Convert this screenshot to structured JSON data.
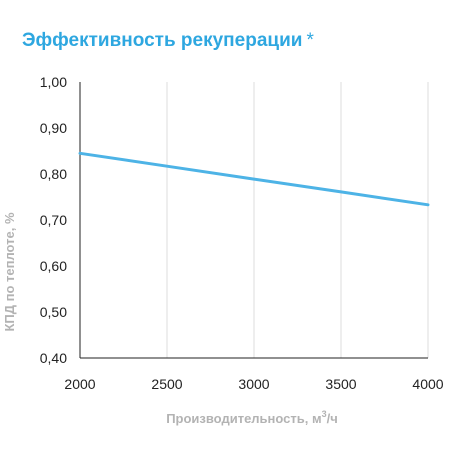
{
  "title": "Эффективность рекуперации",
  "title_mark": "*",
  "colors": {
    "title": "#2ea7e0",
    "line": "#4db3e6",
    "grid": "#dcdcdc",
    "axis_title": "#b3b3b3"
  },
  "chart_data": {
    "type": "line",
    "title": "Эффективность рекуперации *",
    "xlabel": "Производительность, м³/ч",
    "xlabel_parts": {
      "base": "Производительность, м",
      "sup": "3",
      "tail": "/ч"
    },
    "ylabel": "КПД по теплоте, %",
    "xlim": [
      2000,
      4000
    ],
    "ylim": [
      0.4,
      1.0
    ],
    "x_ticks": [
      "2000",
      "2500",
      "3000",
      "3500",
      "4000"
    ],
    "y_ticks": [
      "0,40",
      "0,50",
      "0,60",
      "0,70",
      "0,80",
      "0,90",
      "1,00"
    ],
    "grid": "vertical",
    "series": [
      {
        "x": [
          2000,
          2500,
          3000,
          3500,
          4000
        ],
        "y": [
          0.845,
          0.817,
          0.789,
          0.761,
          0.733
        ]
      }
    ]
  }
}
